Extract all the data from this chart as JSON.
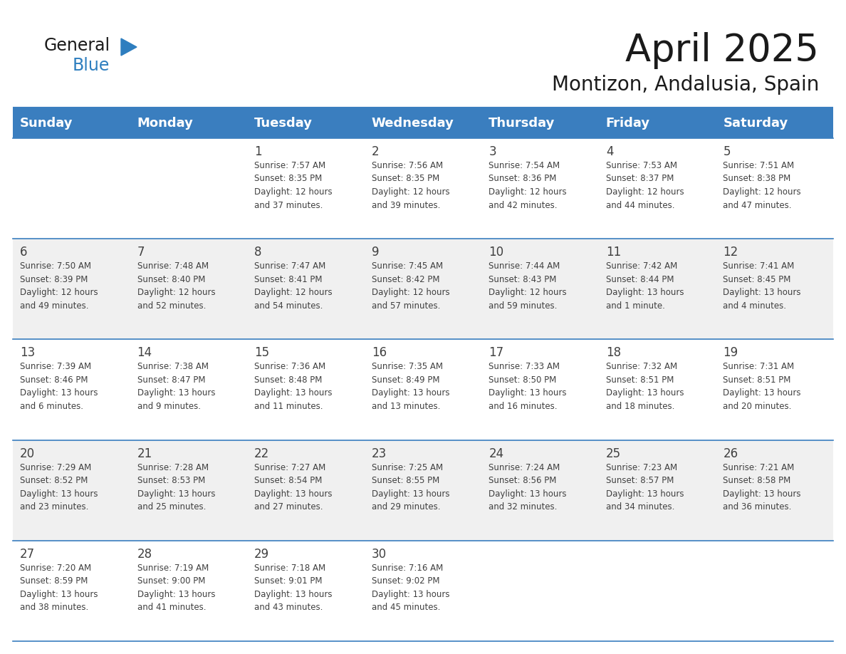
{
  "title": "April 2025",
  "subtitle": "Montizon, Andalusia, Spain",
  "header_color": "#3A7EBF",
  "header_text_color": "#FFFFFF",
  "day_names": [
    "Sunday",
    "Monday",
    "Tuesday",
    "Wednesday",
    "Thursday",
    "Friday",
    "Saturday"
  ],
  "bg_color": "#FFFFFF",
  "row_alt_color": "#F0F0F0",
  "border_color": "#3A7EBF",
  "text_color": "#404040",
  "weeks": [
    [
      {
        "day": "",
        "info": ""
      },
      {
        "day": "",
        "info": ""
      },
      {
        "day": "1",
        "info": "Sunrise: 7:57 AM\nSunset: 8:35 PM\nDaylight: 12 hours\nand 37 minutes."
      },
      {
        "day": "2",
        "info": "Sunrise: 7:56 AM\nSunset: 8:35 PM\nDaylight: 12 hours\nand 39 minutes."
      },
      {
        "day": "3",
        "info": "Sunrise: 7:54 AM\nSunset: 8:36 PM\nDaylight: 12 hours\nand 42 minutes."
      },
      {
        "day": "4",
        "info": "Sunrise: 7:53 AM\nSunset: 8:37 PM\nDaylight: 12 hours\nand 44 minutes."
      },
      {
        "day": "5",
        "info": "Sunrise: 7:51 AM\nSunset: 8:38 PM\nDaylight: 12 hours\nand 47 minutes."
      }
    ],
    [
      {
        "day": "6",
        "info": "Sunrise: 7:50 AM\nSunset: 8:39 PM\nDaylight: 12 hours\nand 49 minutes."
      },
      {
        "day": "7",
        "info": "Sunrise: 7:48 AM\nSunset: 8:40 PM\nDaylight: 12 hours\nand 52 minutes."
      },
      {
        "day": "8",
        "info": "Sunrise: 7:47 AM\nSunset: 8:41 PM\nDaylight: 12 hours\nand 54 minutes."
      },
      {
        "day": "9",
        "info": "Sunrise: 7:45 AM\nSunset: 8:42 PM\nDaylight: 12 hours\nand 57 minutes."
      },
      {
        "day": "10",
        "info": "Sunrise: 7:44 AM\nSunset: 8:43 PM\nDaylight: 12 hours\nand 59 minutes."
      },
      {
        "day": "11",
        "info": "Sunrise: 7:42 AM\nSunset: 8:44 PM\nDaylight: 13 hours\nand 1 minute."
      },
      {
        "day": "12",
        "info": "Sunrise: 7:41 AM\nSunset: 8:45 PM\nDaylight: 13 hours\nand 4 minutes."
      }
    ],
    [
      {
        "day": "13",
        "info": "Sunrise: 7:39 AM\nSunset: 8:46 PM\nDaylight: 13 hours\nand 6 minutes."
      },
      {
        "day": "14",
        "info": "Sunrise: 7:38 AM\nSunset: 8:47 PM\nDaylight: 13 hours\nand 9 minutes."
      },
      {
        "day": "15",
        "info": "Sunrise: 7:36 AM\nSunset: 8:48 PM\nDaylight: 13 hours\nand 11 minutes."
      },
      {
        "day": "16",
        "info": "Sunrise: 7:35 AM\nSunset: 8:49 PM\nDaylight: 13 hours\nand 13 minutes."
      },
      {
        "day": "17",
        "info": "Sunrise: 7:33 AM\nSunset: 8:50 PM\nDaylight: 13 hours\nand 16 minutes."
      },
      {
        "day": "18",
        "info": "Sunrise: 7:32 AM\nSunset: 8:51 PM\nDaylight: 13 hours\nand 18 minutes."
      },
      {
        "day": "19",
        "info": "Sunrise: 7:31 AM\nSunset: 8:51 PM\nDaylight: 13 hours\nand 20 minutes."
      }
    ],
    [
      {
        "day": "20",
        "info": "Sunrise: 7:29 AM\nSunset: 8:52 PM\nDaylight: 13 hours\nand 23 minutes."
      },
      {
        "day": "21",
        "info": "Sunrise: 7:28 AM\nSunset: 8:53 PM\nDaylight: 13 hours\nand 25 minutes."
      },
      {
        "day": "22",
        "info": "Sunrise: 7:27 AM\nSunset: 8:54 PM\nDaylight: 13 hours\nand 27 minutes."
      },
      {
        "day": "23",
        "info": "Sunrise: 7:25 AM\nSunset: 8:55 PM\nDaylight: 13 hours\nand 29 minutes."
      },
      {
        "day": "24",
        "info": "Sunrise: 7:24 AM\nSunset: 8:56 PM\nDaylight: 13 hours\nand 32 minutes."
      },
      {
        "day": "25",
        "info": "Sunrise: 7:23 AM\nSunset: 8:57 PM\nDaylight: 13 hours\nand 34 minutes."
      },
      {
        "day": "26",
        "info": "Sunrise: 7:21 AM\nSunset: 8:58 PM\nDaylight: 13 hours\nand 36 minutes."
      }
    ],
    [
      {
        "day": "27",
        "info": "Sunrise: 7:20 AM\nSunset: 8:59 PM\nDaylight: 13 hours\nand 38 minutes."
      },
      {
        "day": "28",
        "info": "Sunrise: 7:19 AM\nSunset: 9:00 PM\nDaylight: 13 hours\nand 41 minutes."
      },
      {
        "day": "29",
        "info": "Sunrise: 7:18 AM\nSunset: 9:01 PM\nDaylight: 13 hours\nand 43 minutes."
      },
      {
        "day": "30",
        "info": "Sunrise: 7:16 AM\nSunset: 9:02 PM\nDaylight: 13 hours\nand 45 minutes."
      },
      {
        "day": "",
        "info": ""
      },
      {
        "day": "",
        "info": ""
      },
      {
        "day": "",
        "info": ""
      }
    ]
  ],
  "title_fontsize": 38,
  "subtitle_fontsize": 20,
  "header_fontsize": 13,
  "day_num_fontsize": 12,
  "info_fontsize": 8.5
}
